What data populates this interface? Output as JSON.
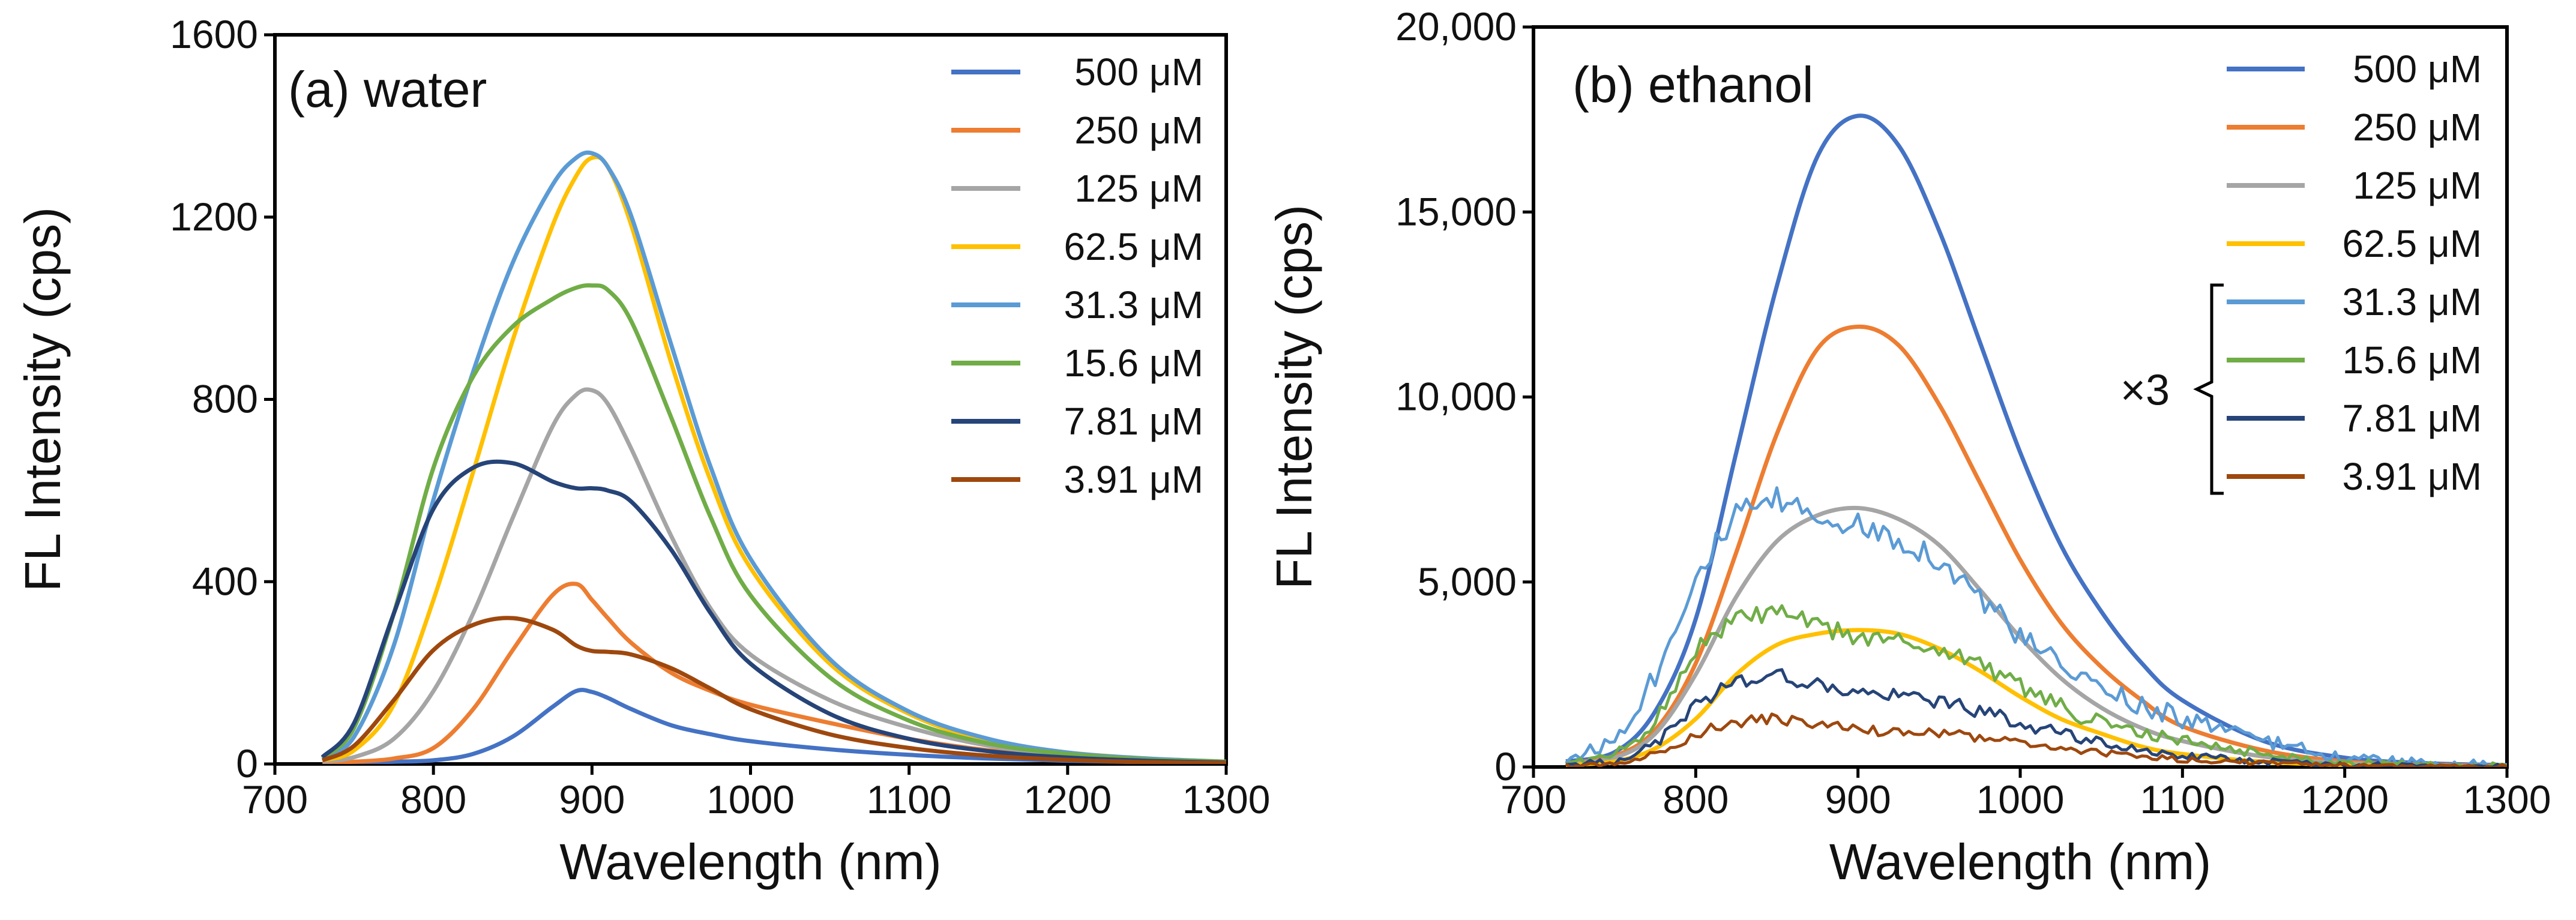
{
  "colors": {
    "500": "#4472c4",
    "250": "#ed7d31",
    "125": "#a5a5a5",
    "62.5": "#ffc000",
    "31.3": "#5b9bd5",
    "15.6": "#70ad47",
    "7.81": "#264478",
    "3.91": "#9e480e"
  },
  "chart_data": [
    {
      "type": "line",
      "title": "(a) water",
      "xlabel": "Wavelength (nm)",
      "ylabel": "FL Intensity (cps)",
      "xlim": [
        700,
        1300
      ],
      "ylim": [
        0,
        1600
      ],
      "xticks": [
        700,
        800,
        900,
        1000,
        1100,
        1200,
        1300
      ],
      "yticks": [
        0,
        400,
        800,
        1200,
        1600
      ],
      "ytick_labels": [
        "0",
        "400",
        "800",
        "1200",
        "1600"
      ],
      "xtick_labels": [
        "700",
        "800",
        "900",
        "1000",
        "1100",
        "1200",
        "1300"
      ],
      "x": [
        730,
        750,
        775,
        800,
        825,
        850,
        875,
        890,
        900,
        910,
        925,
        950,
        975,
        1000,
        1050,
        1100,
        1150,
        1200,
        1250,
        1300
      ],
      "series": [
        {
          "name": "500 μM",
          "legend_label": "500 μM",
          "color_key": "500",
          "values": [
            3,
            3,
            5,
            8,
            22,
            60,
            125,
            160,
            158,
            145,
            120,
            85,
            65,
            50,
            32,
            20,
            12,
            7,
            4,
            2
          ]
        },
        {
          "name": "250 μM",
          "legend_label": "250 μM",
          "color_key": "250",
          "values": [
            3,
            5,
            12,
            35,
            120,
            250,
            370,
            395,
            360,
            320,
            265,
            200,
            160,
            130,
            90,
            55,
            30,
            15,
            8,
            3
          ]
        },
        {
          "name": "125 μM",
          "legend_label": "125 μM",
          "color_key": "125",
          "values": [
            5,
            15,
            55,
            160,
            330,
            540,
            740,
            810,
            820,
            790,
            690,
            500,
            340,
            240,
            140,
            80,
            40,
            20,
            10,
            5
          ]
        },
        {
          "name": "62.5 μM",
          "legend_label": "62.5 μM",
          "color_key": "62.5",
          "values": [
            8,
            30,
            130,
            360,
            640,
            930,
            1180,
            1290,
            1330,
            1310,
            1180,
            880,
            620,
            430,
            220,
            110,
            50,
            25,
            12,
            5
          ]
        },
        {
          "name": "31.3 μM",
          "legend_label": "31.3 μM",
          "color_key": "31.3",
          "values": [
            12,
            60,
            260,
            580,
            860,
            1100,
            1270,
            1330,
            1340,
            1310,
            1200,
            920,
            650,
            450,
            230,
            115,
            55,
            25,
            12,
            5
          ]
        },
        {
          "name": "15.6 μM",
          "legend_label": "15.6 μM",
          "color_key": "15.6",
          "values": [
            14,
            80,
            330,
            650,
            850,
            960,
            1020,
            1045,
            1050,
            1040,
            970,
            760,
            540,
            370,
            190,
            95,
            45,
            22,
            10,
            5
          ]
        },
        {
          "name": "7.81 μM",
          "legend_label": "7.81 μM",
          "color_key": "7.81",
          "values": [
            15,
            90,
            330,
            560,
            650,
            660,
            620,
            605,
            605,
            600,
            575,
            470,
            330,
            220,
            110,
            55,
            28,
            14,
            7,
            3
          ]
        },
        {
          "name": "3.91 μM",
          "legend_label": "3.91 μM",
          "color_key": "3.91",
          "values": [
            8,
            40,
            140,
            250,
            305,
            320,
            295,
            260,
            248,
            246,
            240,
            210,
            165,
            120,
            65,
            35,
            18,
            9,
            4,
            2
          ]
        }
      ]
    },
    {
      "type": "line",
      "title": "(b) ethanol",
      "xlabel": "Wavelength (nm)",
      "ylabel": "FL Intensity (cps)",
      "xlim": [
        700,
        1300
      ],
      "ylim": [
        0,
        20000
      ],
      "xticks": [
        700,
        800,
        900,
        1000,
        1100,
        1200,
        1300
      ],
      "yticks": [
        0,
        5000,
        10000,
        15000,
        20000
      ],
      "ytick_labels": [
        "0",
        "5,000",
        "10,000",
        "15,000",
        "20,000"
      ],
      "xtick_labels": [
        "700",
        "800",
        "900",
        "1000",
        "1100",
        "1200",
        "1300"
      ],
      "bracket_label": "×3",
      "bracket_series": [
        "31.3 μM",
        "15.6 μM",
        "7.81 μM",
        "3.91 μM"
      ],
      "x": [
        720,
        750,
        775,
        800,
        825,
        850,
        875,
        900,
        925,
        950,
        975,
        1000,
        1025,
        1050,
        1075,
        1100,
        1150,
        1200,
        1250,
        1300
      ],
      "series": [
        {
          "name": "500 μM",
          "legend_label": "500 μM",
          "color_key": "500",
          "values": [
            150,
            400,
            1500,
            4000,
            8500,
            13000,
            16500,
            17600,
            16800,
            14500,
            11500,
            8500,
            6000,
            4200,
            2800,
            1800,
            700,
            250,
            100,
            50
          ]
        },
        {
          "name": "250 μM",
          "legend_label": "250 μM",
          "color_key": "250",
          "values": [
            100,
            300,
            1000,
            2800,
            5800,
            9000,
            11300,
            11900,
            11400,
            9800,
            7700,
            5600,
            3900,
            2700,
            1800,
            1100,
            450,
            150,
            60,
            30
          ]
        },
        {
          "name": "125 μM",
          "legend_label": "125 μM",
          "color_key": "125",
          "values": [
            80,
            250,
            900,
            2500,
            4600,
            6100,
            6800,
            7000,
            6700,
            6000,
            4800,
            3500,
            2400,
            1600,
            1050,
            700,
            280,
            100,
            40,
            20
          ]
        },
        {
          "name": "62.5 μM",
          "legend_label": "62.5 μM",
          "color_key": "62.5",
          "values": [
            50,
            150,
            500,
            1300,
            2500,
            3300,
            3600,
            3700,
            3600,
            3200,
            2600,
            1900,
            1300,
            900,
            550,
            350,
            140,
            50,
            20,
            10
          ]
        },
        {
          "name": "31.3 μM",
          "legend_label": "31.3 μM",
          "color_key": "31.3",
          "values": [
            200,
            700,
            2500,
            5200,
            6800,
            7200,
            6800,
            6500,
            6200,
            5600,
            4600,
            3500,
            2700,
            2100,
            1700,
            1300,
            700,
            250,
            100,
            50
          ],
          "noise": 350
        },
        {
          "name": "15.6 μM",
          "legend_label": "15.6 μM",
          "color_key": "15.6",
          "values": [
            100,
            300,
            1200,
            3200,
            4000,
            4200,
            3800,
            3500,
            3400,
            3200,
            2800,
            2200,
            1600,
            1200,
            900,
            700,
            350,
            120,
            50,
            25
          ],
          "noise": 250
        },
        {
          "name": "7.81 μM",
          "legend_label": "7.81 μM",
          "color_key": "7.81",
          "values": [
            60,
            150,
            600,
            1700,
            2300,
            2500,
            2200,
            2000,
            1900,
            1800,
            1500,
            1200,
            900,
            650,
            450,
            300,
            150,
            60,
            25,
            15
          ],
          "noise": 200
        },
        {
          "name": "3.91 μM",
          "legend_label": "3.91 μM",
          "color_key": "3.91",
          "values": [
            30,
            80,
            350,
            900,
            1200,
            1300,
            1150,
            1000,
            950,
            900,
            800,
            650,
            500,
            380,
            280,
            200,
            100,
            40,
            20,
            10
          ],
          "noise": 150
        }
      ]
    }
  ]
}
